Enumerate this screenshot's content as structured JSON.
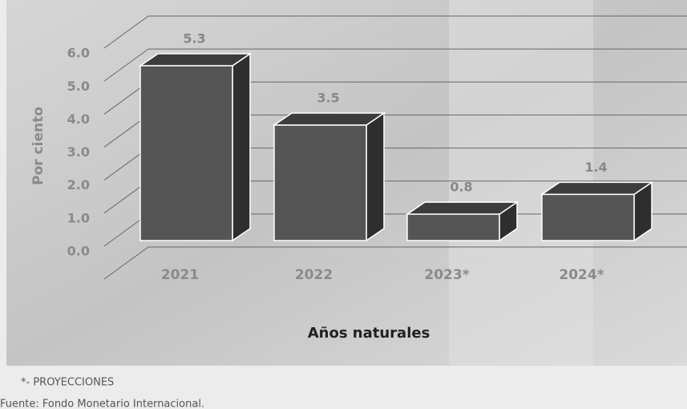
{
  "chart_data": {
    "type": "bar3d",
    "categories": [
      "2021",
      "2022",
      "2023*",
      "2024*"
    ],
    "values": [
      5.3,
      3.5,
      0.8,
      1.4
    ],
    "color": "#555555",
    "ylim": [
      0,
      7
    ],
    "yticks": [
      {
        "value": 0,
        "label": "0.0"
      },
      {
        "value": 1,
        "label": "1.0"
      },
      {
        "value": 2,
        "label": "2.0"
      },
      {
        "value": 3,
        "label": "3.0"
      },
      {
        "value": 4,
        "label": "4.0"
      },
      {
        "value": 5,
        "label": "5.0"
      },
      {
        "value": 6,
        "label": "6.0"
      }
    ],
    "ylabel": "Por ciento",
    "xlabel": "Años naturales",
    "grid": true
  },
  "footnote": "*- PROYECCIONES",
  "source": "Fuente: Fondo Monetario Internacional."
}
